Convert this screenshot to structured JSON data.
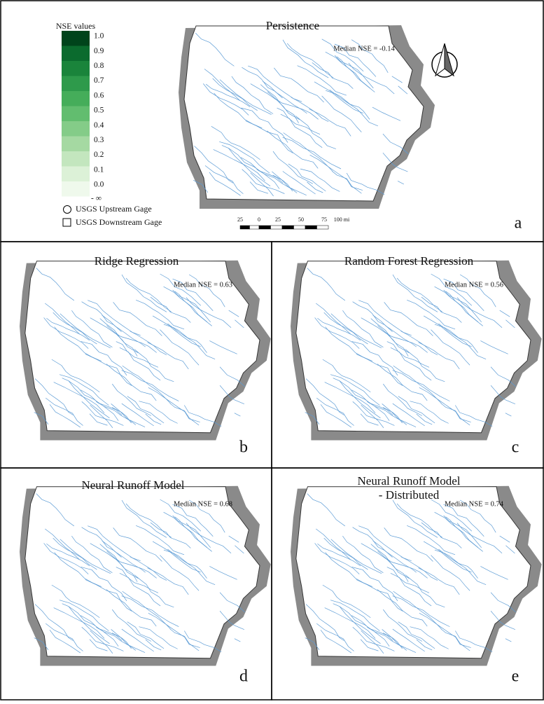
{
  "legend": {
    "title": "NSE values",
    "ticks": [
      {
        "value": 1.0,
        "label": "1.0"
      },
      {
        "value": 0.9,
        "label": "0.9"
      },
      {
        "value": 0.8,
        "label": "0.8"
      },
      {
        "value": 0.7,
        "label": "0.7"
      },
      {
        "value": 0.6,
        "label": "0.6"
      },
      {
        "value": 0.5,
        "label": "0.5"
      },
      {
        "value": 0.4,
        "label": "0.4"
      },
      {
        "value": 0.3,
        "label": "0.3"
      },
      {
        "value": 0.2,
        "label": "0.2"
      },
      {
        "value": 0.1,
        "label": "0.1"
      },
      {
        "value": 0.0,
        "label": "0.0"
      }
    ],
    "bottom_label": "- ∞",
    "colors": [
      "#00441b",
      "#0b6b2e",
      "#1a843b",
      "#2e9a4b",
      "#45ad5a",
      "#62bd6f",
      "#84cc88",
      "#a5d9a2",
      "#c3e6be",
      "#dcf1d7",
      "#eff9ec"
    ],
    "upstream": "USGS Upstream Gage",
    "downstream": "USGS Downstream Gage"
  },
  "scale_bar": {
    "labels": [
      "25",
      "0",
      "25",
      "50",
      "75",
      "100 mi"
    ]
  },
  "panels": [
    {
      "title": "Persistence",
      "median": "Median NSE = -0.14",
      "letter": "a"
    },
    {
      "title": "Ridge Regression",
      "median": "Median NSE = 0.63",
      "letter": "b"
    },
    {
      "title": "Random Forest Regression",
      "median": "Median NSE = 0.56",
      "letter": "c"
    },
    {
      "title": "Neural Runoff Model",
      "median": "Median NSE = 0.68",
      "letter": "d"
    },
    {
      "title": "Neural Runoff Model - Distributed",
      "median": "Median NSE = 0.74",
      "letter": "e"
    }
  ]
}
